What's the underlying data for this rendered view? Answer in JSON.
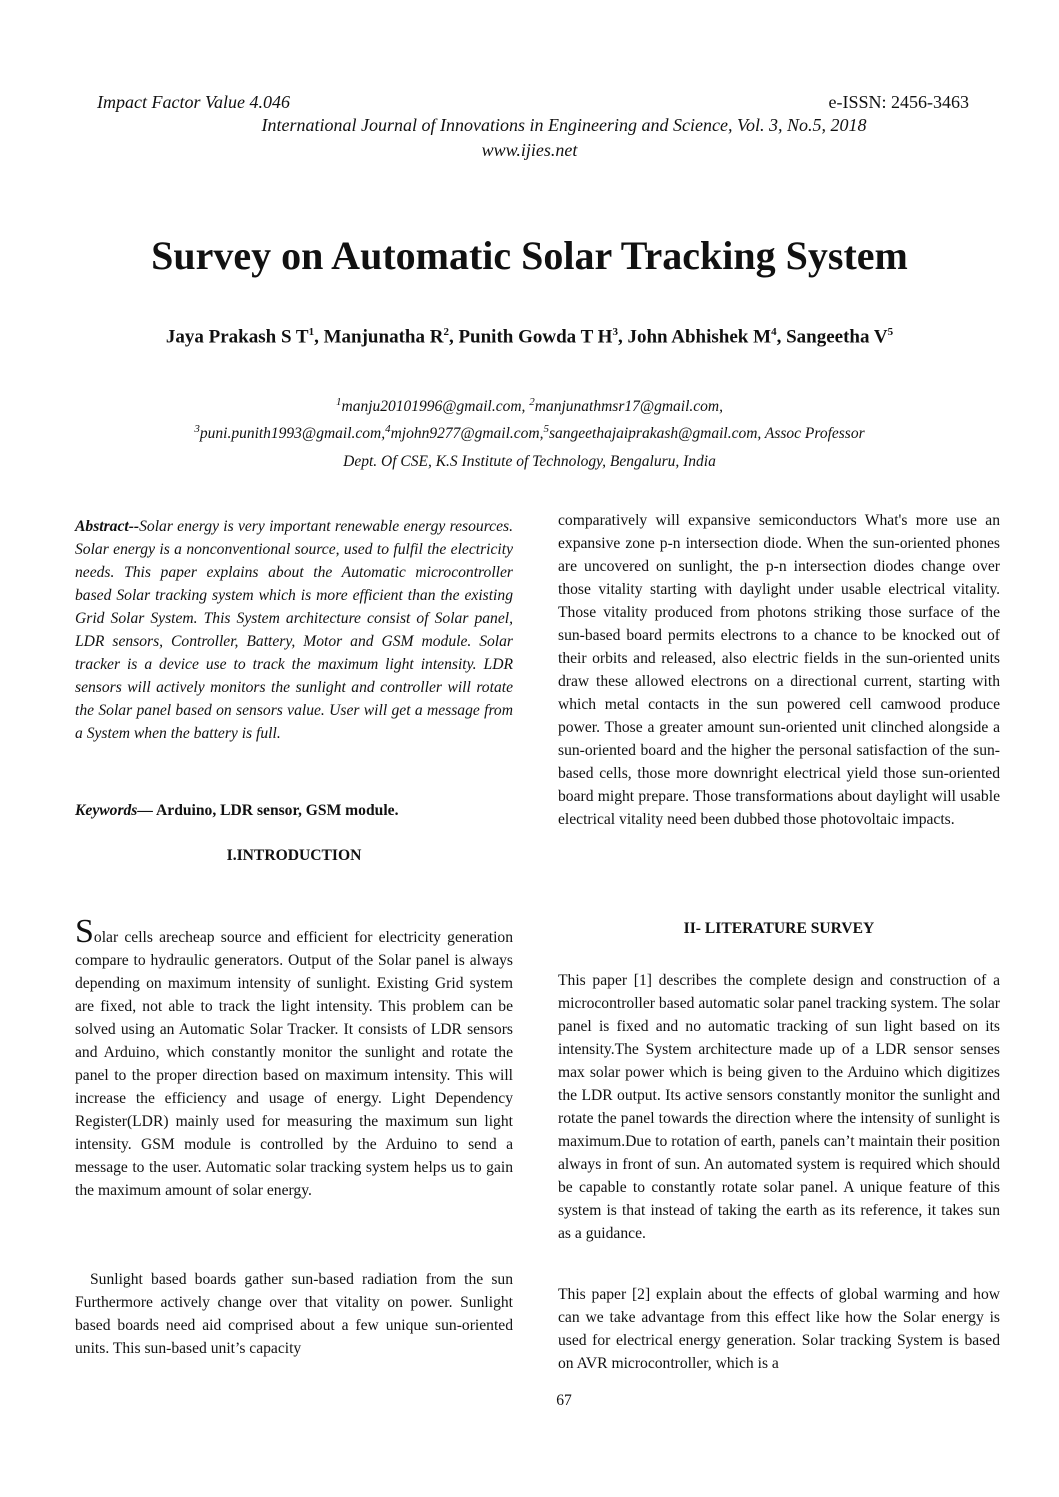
{
  "header": {
    "impact_factor": "Impact Factor Value 4.046",
    "issn": "e-ISSN: 2456-3463",
    "journal": "International Journal of Innovations in Engineering and Science, Vol. 3, No.5, 2018",
    "website": "www.ijies.net"
  },
  "title": "Survey on Automatic Solar Tracking System",
  "authors": [
    {
      "name": "Jaya Prakash S T",
      "sup": "1"
    },
    {
      "name": "Manjunatha R",
      "sup": "2"
    },
    {
      "name": "Punith Gowda T H",
      "sup": "3"
    },
    {
      "name": "John Abhishek M",
      "sup": "4"
    },
    {
      "name": "Sangeetha V",
      "sup": "5"
    }
  ],
  "emails": {
    "e1": "manju20101996@gmail.com,",
    "e2": "manjunathmsr17@gmail.com,",
    "e3": "puni.punith1993@gmail.com,",
    "e4": "mjohn9277@gmail.com,",
    "e5": "sangeethajaiprakash@gmail.com, Assoc Professor"
  },
  "affiliation": "Dept. Of CSE, K.S Institute of Technology, Bengaluru, India",
  "abstract": {
    "label": "Abstract--",
    "text": "Solar energy is very important renewable energy resources. Solar energy is a nonconventional source, used to fulfil the electricity needs. This paper explains about the Automatic microcontroller based Solar tracking system which is more efficient than the existing Grid Solar System. This System architecture consist of Solar panel, LDR sensors, Controller, Battery, Motor and GSM module. Solar tracker is a device use to track the maximum light intensity. LDR sensors will actively monitors the sunlight and controller will rotate the Solar panel based on sensors value. User will get a message from a System when the battery is full."
  },
  "keywords": {
    "label": "Keywords—",
    "text": " Arduino, LDR sensor, GSM module."
  },
  "intro": {
    "heading": "I.INTRODUCTION",
    "drop_cap": "S",
    "p1": "olar cells arecheap source and efficient for electricity generation compare to hydraulic generators. Output of the Solar panel is always depending on maximum intensity of sunlight. Existing Grid system are fixed, not able to track the light intensity. This problem can be solved using an Automatic Solar Tracker. It consists of LDR sensors and Arduino, which constantly monitor the sunlight and rotate the panel to the proper direction based on maximum intensity. This will increase the efficiency and usage of energy. Light Dependency Register(LDR) mainly used for measuring the maximum sun light intensity. GSM module is controlled by the Arduino to send a message to the user. Automatic solar tracking system helps us to gain the maximum amount of solar energy.",
    "p2": "Sunlight based boards gather sun-based radiation from the sun Furthermore actively change over that vitality on power. Sunlight based boards need aid comprised about a few unique sun-oriented units. This sun-based unit’s capacity"
  },
  "right_col": {
    "p1": "comparatively will expansive semiconductors What's more use an expansive zone p-n intersection diode. When the sun-oriented phones are uncovered on sunlight, the p-n intersection diodes change over those vitality starting with daylight under usable electrical vitality. Those vitality produced from photons striking those surface of the sun-based board permits electrons to a chance to be knocked out of their orbits and released, also electric fields in the sun-oriented units draw these allowed electrons on a directional current, starting with which metal contacts in the sun powered cell camwood produce power. Those a greater amount sun-oriented unit clinched alongside a sun-oriented board and the higher the personal satisfaction of the sun-based cells, those more downright electrical yield those sun-oriented board might prepare. Those transformations about daylight will usable electrical vitality need been dubbed those photovoltaic impacts.",
    "heading": "II- LITERATURE SURVEY",
    "p2": "This paper [1] describes the complete design and construction of a microcontroller based automatic solar panel tracking system. The solar panel is fixed and no automatic tracking of sun light based on its intensity.The System architecture made up of a LDR sensor senses max solar power which is being given to the Arduino which digitizes the LDR output. Its active sensors constantly monitor the sunlight and rotate the panel towards the direction where the intensity of sunlight is maximum.Due to rotation of earth, panels can’t maintain their position always in front of sun. An automated system is required which should be capable to constantly rotate solar panel. A unique feature of this system is that instead of taking the earth as its reference, it takes sun as a guidance.",
    "p3": "This paper [2] explain about the effects of global warming and how can we take advantage from this effect like how the Solar energy is used for electrical energy generation. Solar tracking System is based on AVR microcontroller, which is a"
  },
  "page_number": "67"
}
